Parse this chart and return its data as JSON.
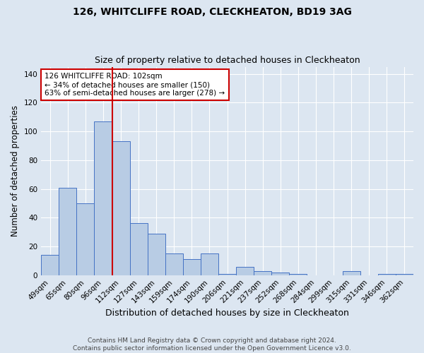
{
  "title": "126, WHITCLIFFE ROAD, CLECKHEATON, BD19 3AG",
  "subtitle": "Size of property relative to detached houses in Cleckheaton",
  "xlabel": "Distribution of detached houses by size in Cleckheaton",
  "ylabel": "Number of detached properties",
  "categories": [
    "49sqm",
    "65sqm",
    "80sqm",
    "96sqm",
    "112sqm",
    "127sqm",
    "143sqm",
    "159sqm",
    "174sqm",
    "190sqm",
    "206sqm",
    "221sqm",
    "237sqm",
    "252sqm",
    "268sqm",
    "284sqm",
    "299sqm",
    "315sqm",
    "331sqm",
    "346sqm",
    "362sqm"
  ],
  "values": [
    14,
    61,
    50,
    107,
    93,
    36,
    29,
    15,
    11,
    15,
    1,
    6,
    3,
    2,
    1,
    0,
    0,
    3,
    0,
    1,
    1
  ],
  "bar_color": "#b8cce4",
  "bar_edge_color": "#4472c4",
  "background_color": "#dce6f1",
  "vline_x": 3.5,
  "vline_color": "#cc0000",
  "annotation_text": "126 WHITCLIFFE ROAD: 102sqm\n← 34% of detached houses are smaller (150)\n63% of semi-detached houses are larger (278) →",
  "annotation_box_color": "white",
  "annotation_box_edge": "#cc0000",
  "ylim": [
    0,
    145
  ],
  "footer": "Contains HM Land Registry data © Crown copyright and database right 2024.\nContains public sector information licensed under the Open Government Licence v3.0.",
  "title_fontsize": 10,
  "subtitle_fontsize": 9,
  "xlabel_fontsize": 9,
  "ylabel_fontsize": 8.5,
  "tick_fontsize": 7.5,
  "footer_fontsize": 6.5
}
